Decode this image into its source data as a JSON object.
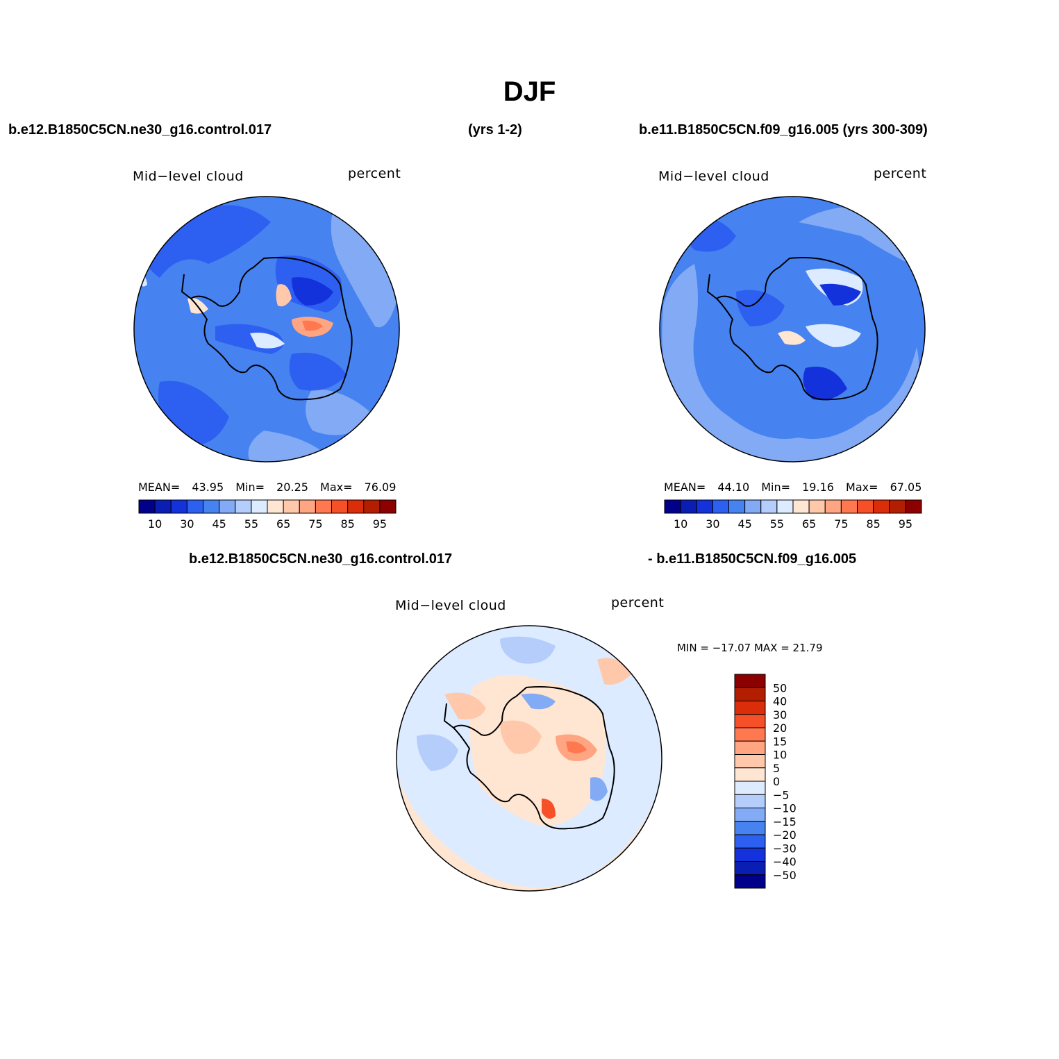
{
  "figure_title": "DJF",
  "header": {
    "case_a": "b.e12.B1850C5CN.ne30_g16.control.017",
    "years_a": "(yrs 1-2)",
    "case_b": "b.e11.B1850C5CN.f09_g16.005 (yrs 300-309)"
  },
  "diff_header": {
    "case_a": "b.e12.B1850C5CN.ne30_g16.control.017",
    "case_b": "- b.e11.B1850C5CN.f09_g16.005"
  },
  "panels": {
    "top_left": {
      "variable": "Mid−level cloud",
      "units": "percent",
      "stats": {
        "mean_label": "MEAN=",
        "mean": "43.95",
        "min_label": "Min=",
        "min": "20.25",
        "max_label": "Max=",
        "max": "76.09"
      }
    },
    "top_right": {
      "variable": "Mid−level cloud",
      "units": "percent",
      "stats": {
        "mean_label": "MEAN=",
        "mean": "44.10",
        "min_label": "Min=",
        "min": "19.16",
        "max_label": "Max=",
        "max": "67.05"
      }
    },
    "bottom": {
      "variable": "Mid−level cloud",
      "units": "percent",
      "stats": "MIN = −17.07 MAX =  21.79"
    }
  },
  "colorbar_abs": {
    "labels": [
      "10",
      "30",
      "45",
      "55",
      "65",
      "75",
      "85",
      "95"
    ],
    "colors": [
      "#00008b",
      "#0a1eb4",
      "#1432dc",
      "#2d5ff0",
      "#4682f0",
      "#82aaf5",
      "#b4cdfa",
      "#dcebff",
      "#ffe6d2",
      "#ffc8aa",
      "#ffa582",
      "#ff7850",
      "#f55028",
      "#dc2d0a",
      "#b41e00",
      "#8c0000"
    ]
  },
  "colorbar_diff": {
    "labels": [
      "50",
      "40",
      "30",
      "20",
      "15",
      "10",
      "5",
      "0",
      "−5",
      "−10",
      "−15",
      "−20",
      "−30",
      "−40",
      "−50"
    ],
    "colors": [
      "#8c0000",
      "#b41e00",
      "#dc2d0a",
      "#f55028",
      "#ff7850",
      "#ffa582",
      "#ffc8aa",
      "#ffe6d2",
      "#dcebff",
      "#b4cdfa",
      "#82aaf5",
      "#4682f0",
      "#2d5ff0",
      "#1432dc",
      "#0a1eb4",
      "#00008b"
    ]
  },
  "map_colors": {
    "ocean_a": "#4682f0",
    "ocean_b": "#4682f0",
    "ocean_diff": "#dcebff",
    "coast": "#000000"
  }
}
